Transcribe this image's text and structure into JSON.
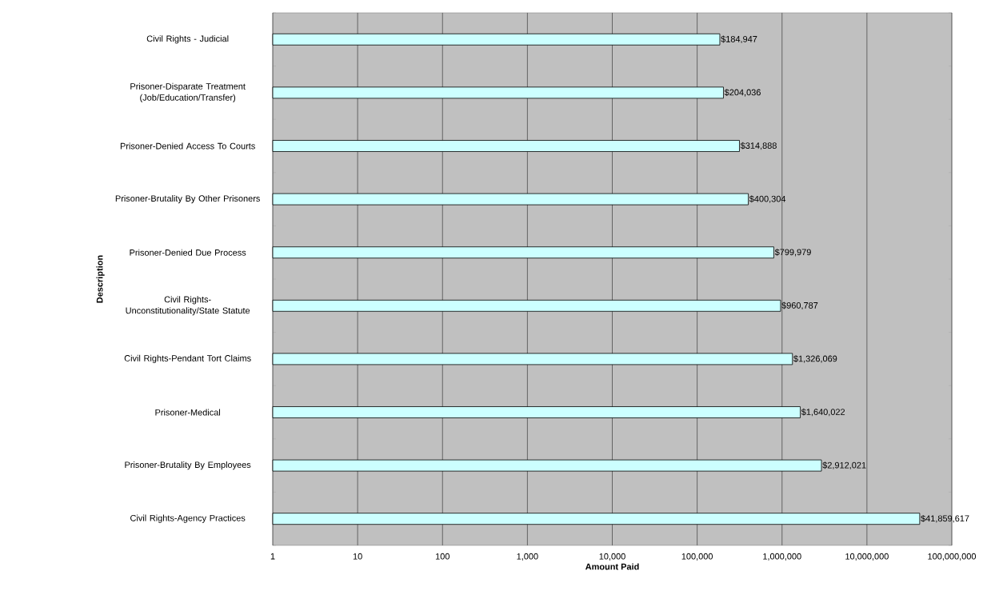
{
  "chart_data": {
    "type": "bar",
    "orientation": "horizontal",
    "xlabel": "Amount Paid",
    "ylabel": "Description",
    "categories": [
      "Civil Rights - Judicial",
      "Prisoner-Disparate Treatment (Job/Education/Transfer)",
      "Prisoner-Denied Access To Courts",
      "Prisoner-Brutality By Other Prisoners",
      "Prisoner-Denied Due Process",
      "Civil Rights-Unconstitutionality/State Statute",
      "Civil Rights-Pendant Tort Claims",
      "Prisoner-Medical",
      "Prisoner-Brutality By Employees",
      "Civil Rights-Agency Practices"
    ],
    "values": [
      184947,
      204036,
      314888,
      400304,
      799979,
      960787,
      1326069,
      1640022,
      2912021,
      41859617
    ],
    "value_labels": [
      "$184,947",
      "$204,036",
      "$314,888",
      "$400,304",
      "$799,979",
      "$960,787",
      "$1,326,069",
      "$1,640,022",
      "$2,912,021",
      "$41,859,617"
    ],
    "color": "#ccffff",
    "log": "x",
    "xlim": [
      1,
      100000000
    ],
    "xticks": [
      1,
      10,
      100,
      {
        "value": 1000,
        "label": "1,000"
      },
      {
        "value": 10000,
        "label": "10,000"
      },
      {
        "value": 100000,
        "label": "100,000"
      },
      {
        "value": 1000000,
        "label": "1,000,000"
      },
      {
        "value": 10000000,
        "label": "10,000,000"
      },
      {
        "value": 100000000,
        "label": "100,000,000"
      }
    ],
    "grid": "x"
  }
}
